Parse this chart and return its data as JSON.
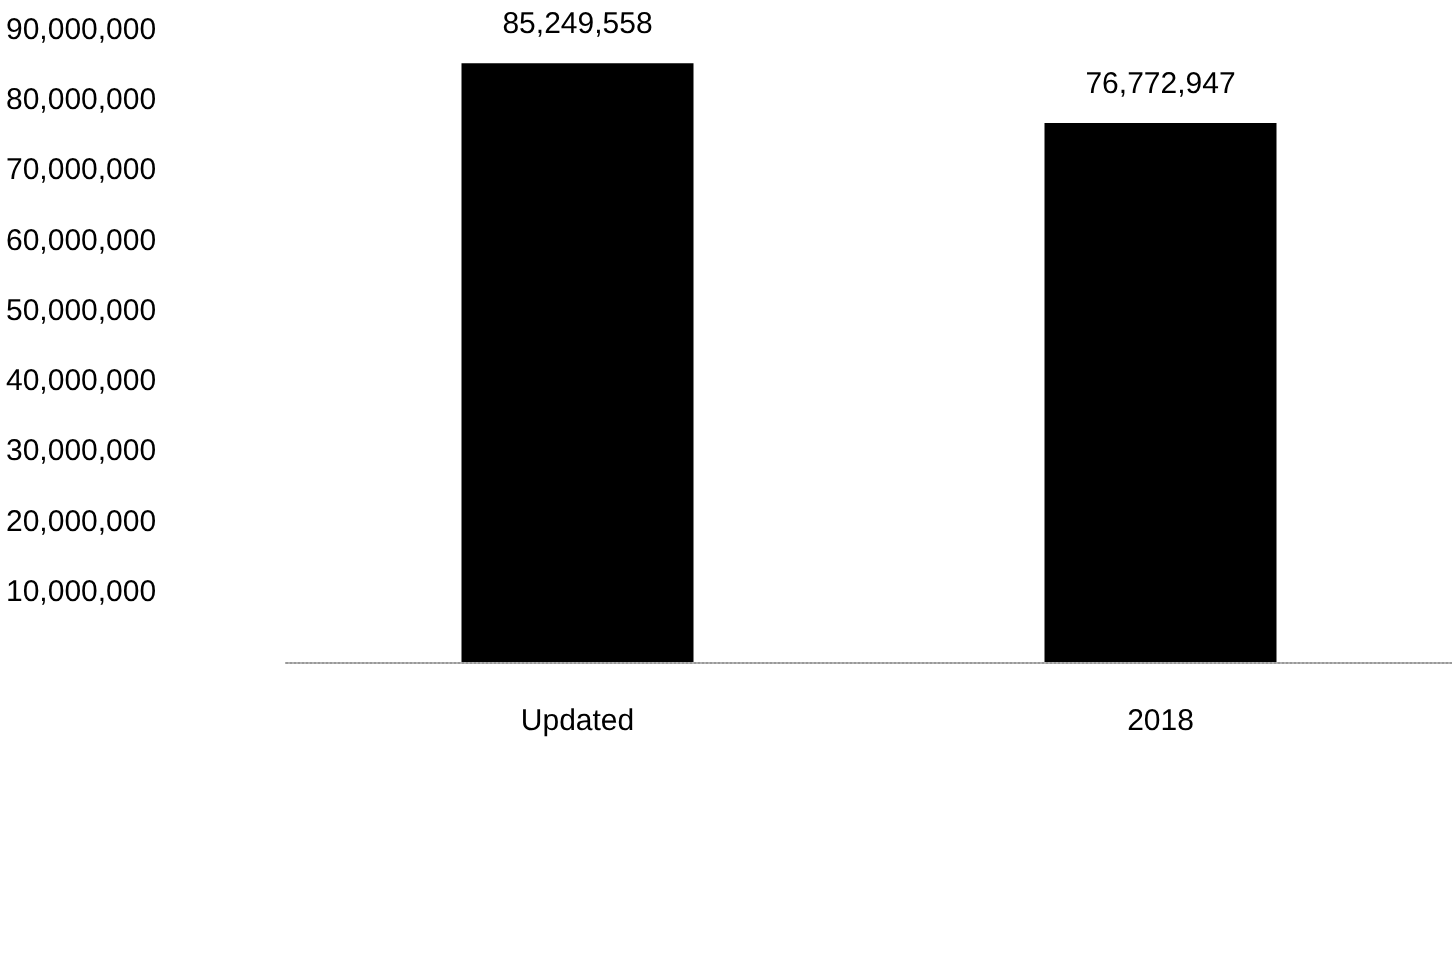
{
  "chart_data": {
    "type": "bar",
    "categories": [
      "Updated",
      "2018"
    ],
    "values": [
      85249558,
      76772947
    ],
    "value_labels": [
      "85,249,558",
      "76,772,947"
    ],
    "color": "#000000",
    "grid": false,
    "ylim": [
      0,
      90000000
    ],
    "yticks": [
      {
        "value": 10000000,
        "label": "10,000,000"
      },
      {
        "value": 20000000,
        "label": "20,000,000"
      },
      {
        "value": 30000000,
        "label": "30,000,000"
      },
      {
        "value": 40000000,
        "label": "40,000,000"
      },
      {
        "value": 50000000,
        "label": "50,000,000"
      },
      {
        "value": 60000000,
        "label": "60,000,000"
      },
      {
        "value": 70000000,
        "label": "70,000,000"
      },
      {
        "value": 80000000,
        "label": "80,000,000"
      },
      {
        "value": 90000000,
        "label": "90,000,000"
      }
    ]
  }
}
